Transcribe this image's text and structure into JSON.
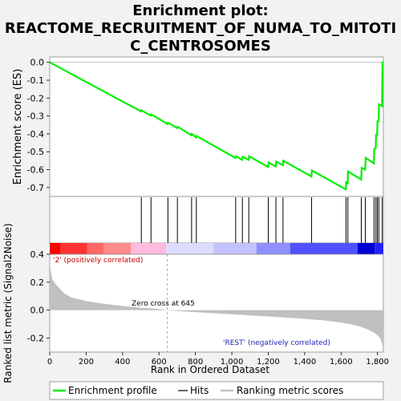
{
  "chart_data": {
    "type": "line",
    "title_lines": [
      "Enrichment plot:",
      "REACTOME_RECRUITMENT_OF_NUMA_TO_MITOTI",
      "C_CENTROSOMES"
    ],
    "es_panel": {
      "ylabel": "Enrichment score (ES)",
      "ylim": [
        -0.75,
        0.03
      ],
      "yticks": [
        "0.0",
        "-0.1",
        "-0.2",
        "-0.3",
        "-0.4",
        "-0.5",
        "-0.6",
        "-0.7"
      ],
      "ytick_values": [
        0.0,
        -0.1,
        -0.2,
        -0.3,
        -0.4,
        -0.5,
        -0.6,
        -0.7
      ],
      "series": [
        {
          "name": "Enrichment profile",
          "color": "#00ee00",
          "x": [
            0,
            502,
            504,
            555,
            558,
            648,
            650,
            700,
            703,
            778,
            780,
            804,
            807,
            1020,
            1023,
            1057,
            1060,
            1092,
            1095,
            1199,
            1202,
            1241,
            1244,
            1280,
            1283,
            1437,
            1440,
            1626,
            1628,
            1636,
            1638,
            1710,
            1713,
            1732,
            1735,
            1780,
            1782,
            1790,
            1792,
            1798,
            1800,
            1806,
            1808,
            1825,
            1827,
            1832
          ],
          "y": [
            0.0,
            -0.275,
            -0.268,
            -0.298,
            -0.291,
            -0.345,
            -0.338,
            -0.368,
            -0.36,
            -0.408,
            -0.4,
            -0.42,
            -0.412,
            -0.535,
            -0.525,
            -0.545,
            -0.528,
            -0.545,
            -0.525,
            -0.585,
            -0.56,
            -0.582,
            -0.555,
            -0.575,
            -0.55,
            -0.638,
            -0.605,
            -0.71,
            -0.67,
            -0.675,
            -0.61,
            -0.655,
            -0.59,
            -0.6,
            -0.535,
            -0.565,
            -0.485,
            -0.48,
            -0.405,
            -0.405,
            -0.33,
            -0.33,
            -0.235,
            -0.245,
            0.0,
            0.0
          ]
        }
      ]
    },
    "hits": {
      "name": "Hits",
      "x": [
        503,
        556,
        649,
        701,
        779,
        805,
        1021,
        1058,
        1093,
        1200,
        1242,
        1281,
        1438,
        1627,
        1637,
        1711,
        1733,
        1781,
        1791,
        1799,
        1807,
        1826
      ]
    },
    "ranking_bar": {
      "segments": [
        {
          "from": 0,
          "to": 60,
          "color": "#ff0000"
        },
        {
          "from": 60,
          "to": 205,
          "color": "#ff3333"
        },
        {
          "from": 205,
          "to": 295,
          "color": "#ff6666"
        },
        {
          "from": 295,
          "to": 445,
          "color": "#ff8c8c"
        },
        {
          "from": 445,
          "to": 640,
          "color": "#ffbbdd"
        },
        {
          "from": 640,
          "to": 900,
          "color": "#dddcff"
        },
        {
          "from": 900,
          "to": 1135,
          "color": "#c2c2ff"
        },
        {
          "from": 1135,
          "to": 1320,
          "color": "#8f8fff"
        },
        {
          "from": 1320,
          "to": 1690,
          "color": "#5151ff"
        },
        {
          "from": 1690,
          "to": 1785,
          "color": "#0000d5"
        },
        {
          "from": 1785,
          "to": 1832,
          "color": "#2222ff"
        }
      ]
    },
    "metric_panel": {
      "ylabel": "Ranked list metric (Signal2Noise)",
      "ylim": [
        -0.3,
        0.4
      ],
      "yticks": [
        "0.4",
        "0.2",
        "0.0",
        "-0.2"
      ],
      "ytick_values": [
        0.4,
        0.2,
        0.0,
        -0.2
      ],
      "xticks": [
        "0",
        "200",
        "400",
        "600",
        "800",
        "1,000",
        "1,200",
        "1,400",
        "1,600",
        "1,800"
      ],
      "xtick_values": [
        0,
        200,
        400,
        600,
        800,
        1000,
        1200,
        1400,
        1600,
        1800
      ],
      "xlabel": "Rank in Ordered Dataset",
      "xlim": [
        0,
        1832
      ],
      "series": [
        {
          "name": "Ranking metric scores",
          "x": [
            0,
            5,
            15,
            30,
            50,
            80,
            120,
            200,
            300,
            400,
            500,
            600,
            645,
            700,
            800,
            900,
            1000,
            1100,
            1200,
            1300,
            1400,
            1500,
            1600,
            1650,
            1700,
            1750,
            1780,
            1800,
            1815,
            1825,
            1832
          ],
          "y": [
            0.36,
            0.28,
            0.22,
            0.19,
            0.16,
            0.12,
            0.09,
            0.065,
            0.045,
            0.03,
            0.018,
            0.008,
            0.0,
            -0.006,
            -0.015,
            -0.022,
            -0.03,
            -0.037,
            -0.045,
            -0.053,
            -0.062,
            -0.073,
            -0.088,
            -0.1,
            -0.115,
            -0.14,
            -0.16,
            -0.18,
            -0.2,
            -0.24,
            -0.28
          ]
        }
      ],
      "annotations": {
        "positive": "'2' (positively correlated)",
        "zero_cross": "Zero cross at 645",
        "negative": "'REST' (negatively correlated)"
      },
      "zero_cross_x": 645
    },
    "legend": {
      "placement": "bottom",
      "entries": [
        "Enrichment profile",
        "Hits",
        "Ranking metric scores"
      ]
    }
  }
}
